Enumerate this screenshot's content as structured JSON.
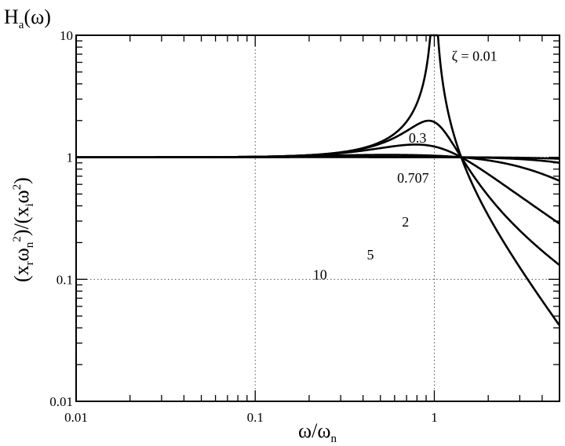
{
  "chart_data": {
    "type": "line",
    "title": "H",
    "title_sub": "a",
    "title_suffix": "(ω)",
    "xlabel": "ω/ω",
    "xlabel_sub": "n",
    "ylabel_parts": {
      "p1": "(x",
      "s1": "r",
      "p2": "ω",
      "s2": "n",
      "sup1": "2",
      "p3": ")/(x",
      "s3": "i",
      "p4": "ω",
      "sup2": "2",
      "p5": ")"
    },
    "x_scale": "log",
    "y_scale": "log",
    "xlim": [
      0.01,
      5
    ],
    "ylim": [
      0.01,
      10
    ],
    "grid": "dotted, at decades",
    "x_ticks": [
      {
        "value": 0.01,
        "label": "0.01"
      },
      {
        "value": 0.1,
        "label": "0.1"
      },
      {
        "value": 1,
        "label": "1"
      }
    ],
    "y_ticks": [
      {
        "value": 0.01,
        "label": "0.01"
      },
      {
        "value": 0.1,
        "label": "0.1"
      },
      {
        "value": 1,
        "label": "1"
      },
      {
        "value": 10,
        "label": "10"
      }
    ],
    "series": [
      {
        "name": "ζ = 0.01",
        "zeta": 0.01,
        "label": "ζ = 0.01",
        "label_at": {
          "x": 1.25,
          "y": 6.2
        }
      },
      {
        "name": "0.3",
        "zeta": 0.3,
        "label": "0.3",
        "label_at": {
          "x": 0.72,
          "y": 1.32
        }
      },
      {
        "name": "0.707",
        "zeta": 0.707,
        "label": "0.707",
        "label_at": {
          "x": 0.62,
          "y": 0.62
        }
      },
      {
        "name": "2",
        "zeta": 2,
        "label": "2",
        "label_at": {
          "x": 0.66,
          "y": 0.27
        }
      },
      {
        "name": "5",
        "zeta": 5,
        "label": "5",
        "label_at": {
          "x": 0.42,
          "y": 0.145
        }
      },
      {
        "name": "10",
        "zeta": 10,
        "label": "10",
        "label_at": {
          "x": 0.21,
          "y": 0.1
        }
      }
    ]
  }
}
